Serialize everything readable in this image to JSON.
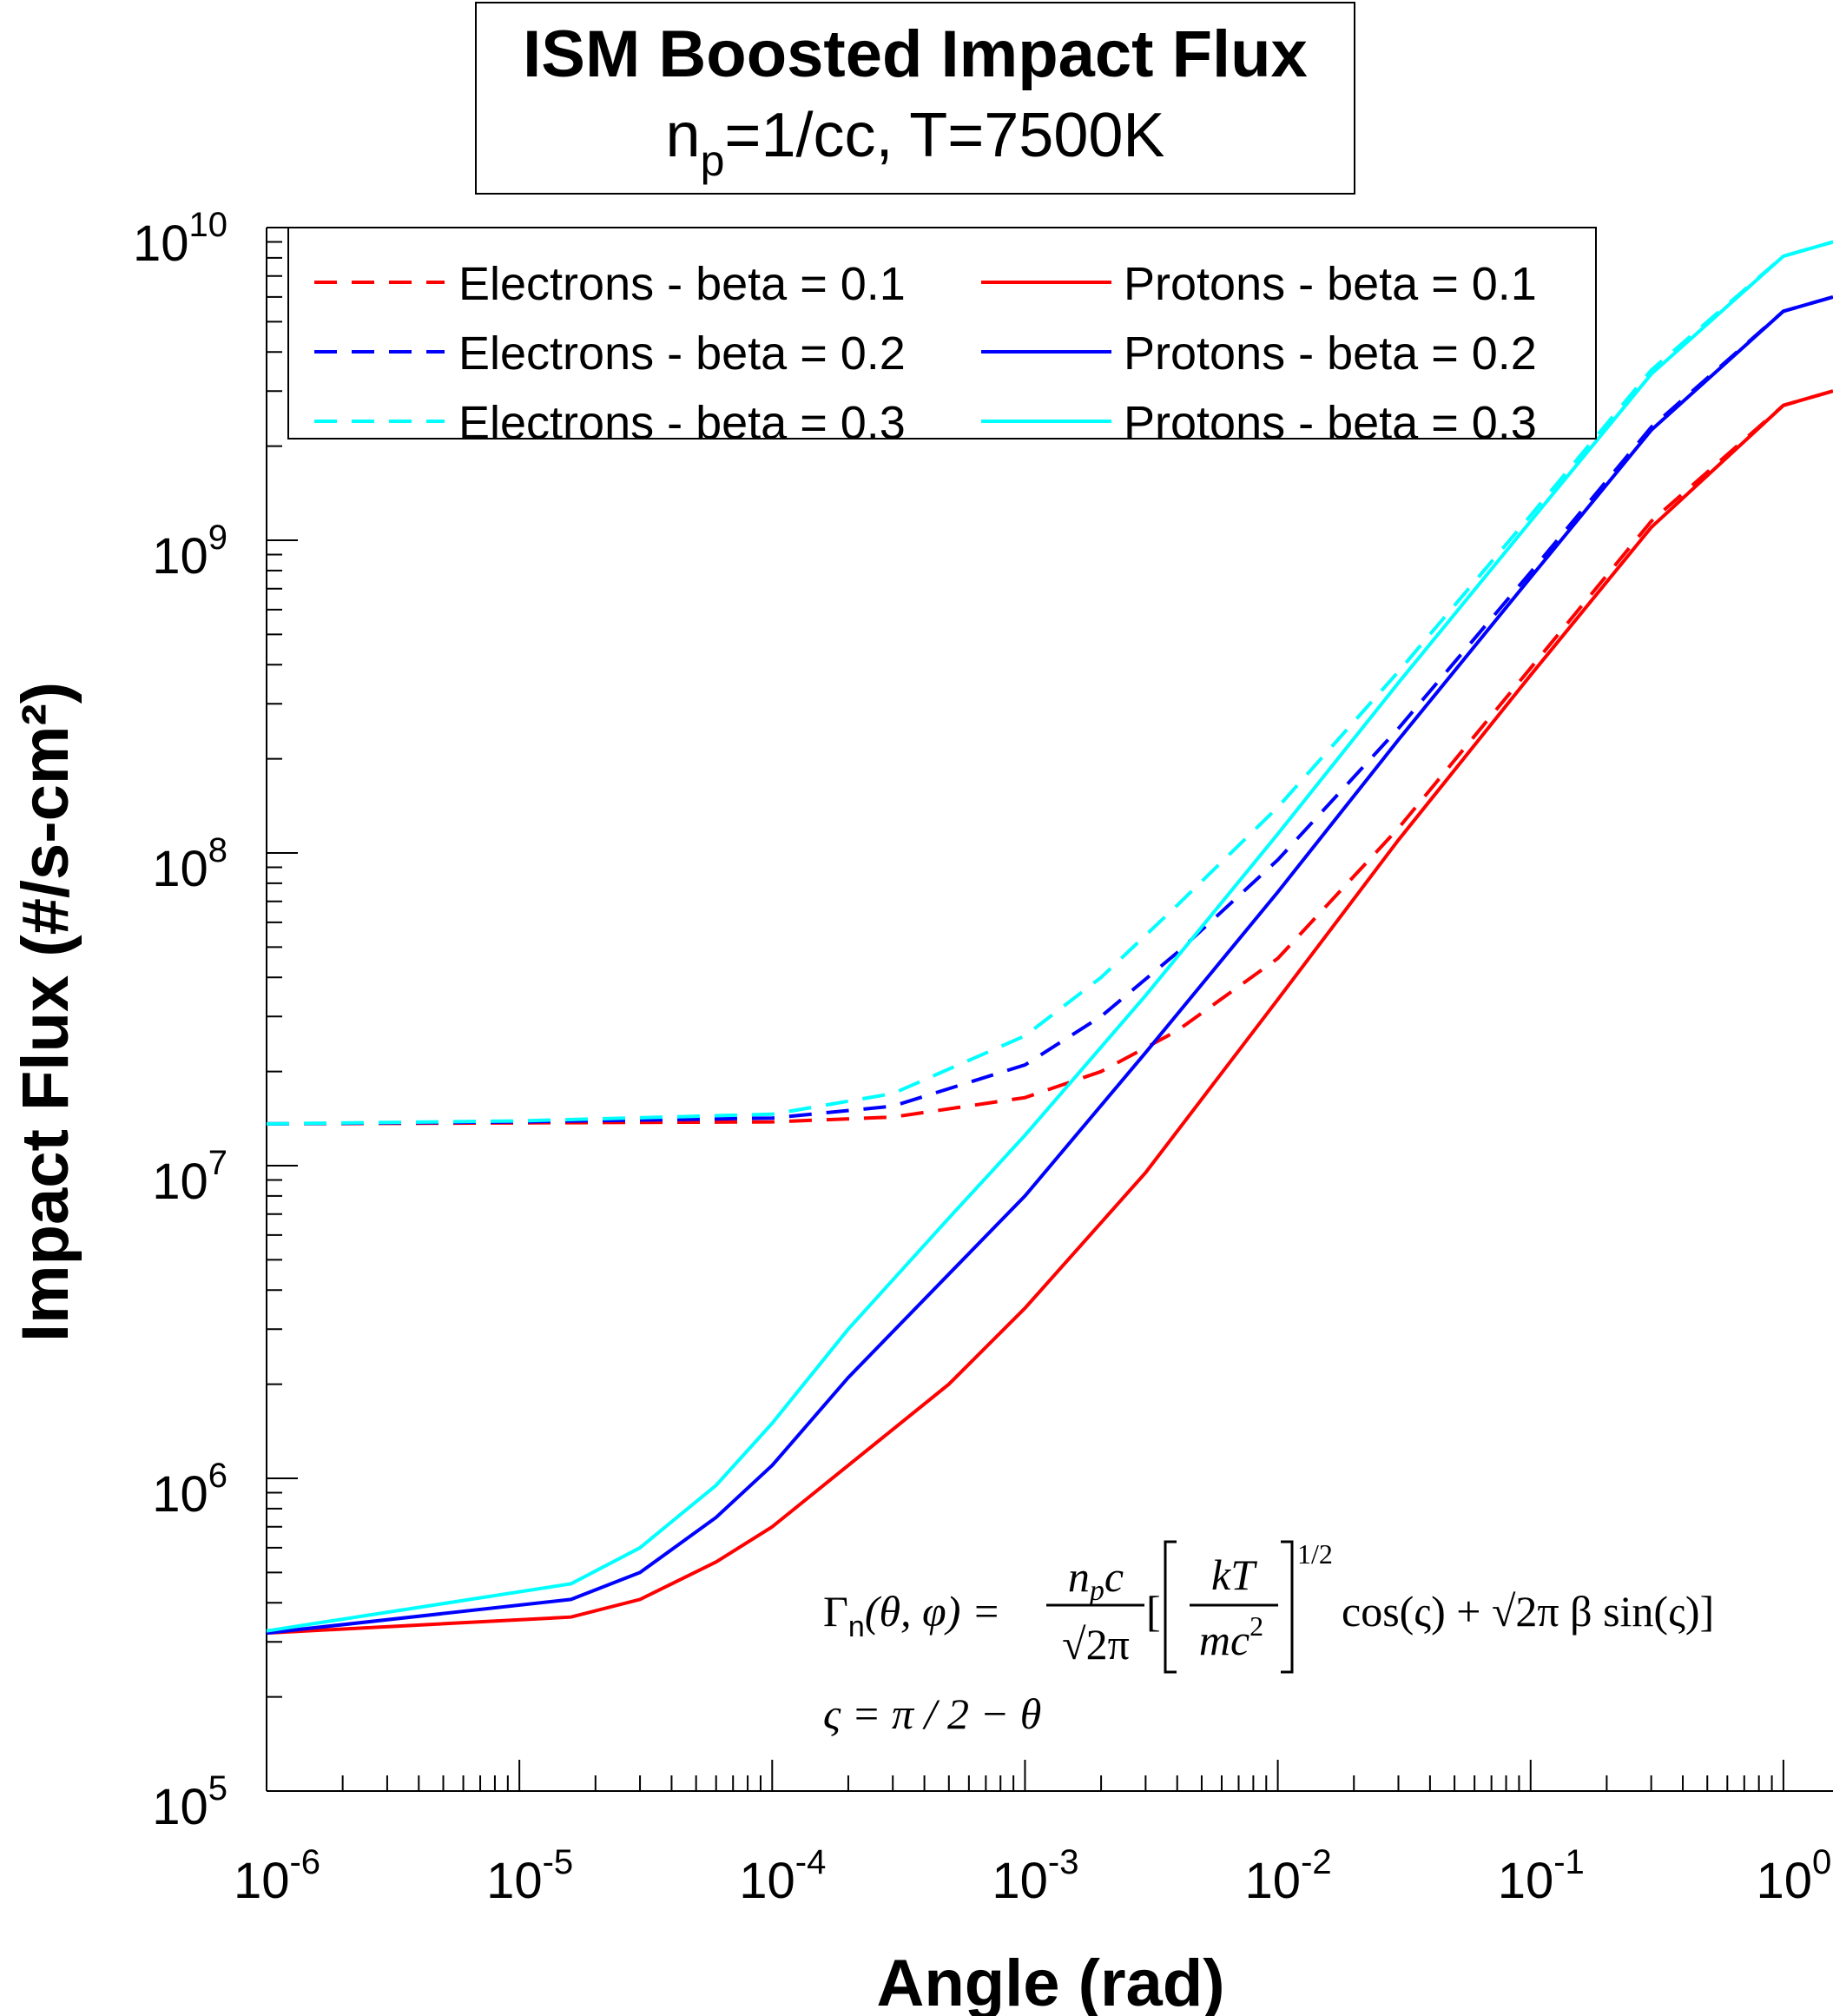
{
  "chart_data": {
    "type": "line",
    "title": "ISM Boosted Impact Flux",
    "subtitle": {
      "prefix": "n",
      "subscript": "p",
      "suffix": "=1/cc, T=7500K"
    },
    "xlabel": "Angle (rad)",
    "ylabel": "Impact Flux (#/s-cm²)",
    "xscale": "log",
    "yscale": "log",
    "xlim": [
      1e-06,
      1.5708
    ],
    "ylim": [
      100000.0,
      10000000000.0
    ],
    "x_tick_labels": [
      {
        "base": "10",
        "exp": "-6"
      },
      {
        "base": "10",
        "exp": "-5"
      },
      {
        "base": "10",
        "exp": "-4"
      },
      {
        "base": "10",
        "exp": "-3"
      },
      {
        "base": "10",
        "exp": "-2"
      },
      {
        "base": "10",
        "exp": "-1"
      },
      {
        "base": "10",
        "exp": "0"
      }
    ],
    "y_tick_labels": [
      {
        "base": "10",
        "exp": "5"
      },
      {
        "base": "10",
        "exp": "6"
      },
      {
        "base": "10",
        "exp": "7"
      },
      {
        "base": "10",
        "exp": "8"
      },
      {
        "base": "10",
        "exp": "9"
      },
      {
        "base": "10",
        "exp": "10"
      }
    ],
    "legend_position": "top-left",
    "series": [
      {
        "name": "Electrons - beta = 0.1",
        "species": "electron",
        "beta": 0.1,
        "color": "#ff0000",
        "dash": "dashed",
        "x": [
          1e-06,
          1e-05,
          0.0001,
          0.0003,
          0.001,
          0.002,
          0.004,
          0.01,
          0.03,
          0.1,
          0.3,
          1.0,
          1.5708
        ],
        "y": [
          13600000.0,
          13700000.0,
          13800000.0,
          14300000.0,
          16500000.0,
          20000000.0,
          27000000.0,
          46000000.0,
          120000000.0,
          390000000.0,
          1150000000.0,
          2700000000.0,
          3000000000.0
        ]
      },
      {
        "name": "Electrons - beta = 0.2",
        "species": "electron",
        "beta": 0.2,
        "color": "#0000ff",
        "dash": "dashed",
        "x": [
          1e-06,
          1e-05,
          0.0001,
          0.0003,
          0.001,
          0.002,
          0.004,
          0.01,
          0.03,
          0.1,
          0.3,
          1.0,
          1.5708
        ],
        "y": [
          13600000.0,
          13800000.0,
          14200000.0,
          15500000.0,
          21000000.0,
          30000000.0,
          48000000.0,
          95000000.0,
          250000000.0,
          790000000.0,
          2300000000.0,
          5400000000.0,
          6000000000.0
        ]
      },
      {
        "name": "Electrons - beta = 0.3",
        "species": "electron",
        "beta": 0.3,
        "color": "#00ffff",
        "dash": "dashed",
        "x": [
          1e-06,
          1e-05,
          0.0001,
          0.0003,
          0.001,
          0.002,
          0.004,
          0.01,
          0.03,
          0.1,
          0.3,
          1.0,
          1.5708
        ],
        "y": [
          13600000.0,
          13900000.0,
          14600000.0,
          17000000.0,
          26000000.0,
          40000000.0,
          68000000.0,
          140000000.0,
          380000000.0,
          1200000000.0,
          3500000000.0,
          8100000000.0,
          9000000000.0
        ]
      },
      {
        "name": "Protons - beta = 0.1",
        "species": "proton",
        "beta": 0.1,
        "color": "#ff0000",
        "dash": "solid",
        "x": [
          1e-06,
          1.6e-05,
          3e-05,
          6e-05,
          0.0001,
          0.0002,
          0.0005,
          0.001,
          0.003,
          0.01,
          0.03,
          0.1,
          0.3,
          1.0,
          1.5708
        ],
        "y": [
          320000.0,
          360000.0,
          410000.0,
          540000.0,
          700000.0,
          1100000.0,
          2000000.0,
          3500000.0,
          9500000.0,
          34000000.0,
          110000000.0,
          370000000.0,
          1100000000.0,
          2700000000.0,
          3000000000.0
        ]
      },
      {
        "name": "Protons - beta = 0.2",
        "species": "proton",
        "beta": 0.2,
        "color": "#0000ff",
        "dash": "solid",
        "x": [
          1e-06,
          1.6e-05,
          3e-05,
          6e-05,
          0.0001,
          0.0002,
          0.0005,
          0.001,
          0.003,
          0.01,
          0.03,
          0.1,
          0.3,
          1.0,
          1.5708
        ],
        "y": [
          320000.0,
          410000.0,
          500000.0,
          750000.0,
          1100000.0,
          2100000.0,
          4500000.0,
          8000000.0,
          23000000.0,
          75000000.0,
          230000000.0,
          760000000.0,
          2250000000.0,
          5400000000.0,
          6000000000.0
        ]
      },
      {
        "name": "Protons - beta = 0.3",
        "species": "proton",
        "beta": 0.3,
        "color": "#00ffff",
        "dash": "solid",
        "x": [
          1e-06,
          1.6e-05,
          3e-05,
          6e-05,
          0.0001,
          0.0002,
          0.0005,
          0.001,
          0.003,
          0.01,
          0.03,
          0.1,
          0.3,
          1.0,
          1.5708
        ],
        "y": [
          325000.0,
          460000.0,
          600000.0,
          950000.0,
          1500000.0,
          3000000.0,
          6800000.0,
          12500000.0,
          35000000.0,
          115000000.0,
          350000000.0,
          1150000000.0,
          3400000000.0,
          8100000000.0,
          9000000000.0
        ]
      }
    ],
    "equation": {
      "gamma_sym": "Γ",
      "gamma_sub": "n",
      "args": "(θ, φ) =",
      "num_n": "n",
      "num_p": "p",
      "num_c": "c",
      "den": "√2π",
      "open_bracket": "[",
      "frac_num": "kT",
      "frac_den_base": "mc",
      "frac_den_exp": "2",
      "power": "1/2",
      "rest": "cos(ς) + √2π β sin(ς)]",
      "line2": "ς = π / 2 − θ"
    }
  }
}
